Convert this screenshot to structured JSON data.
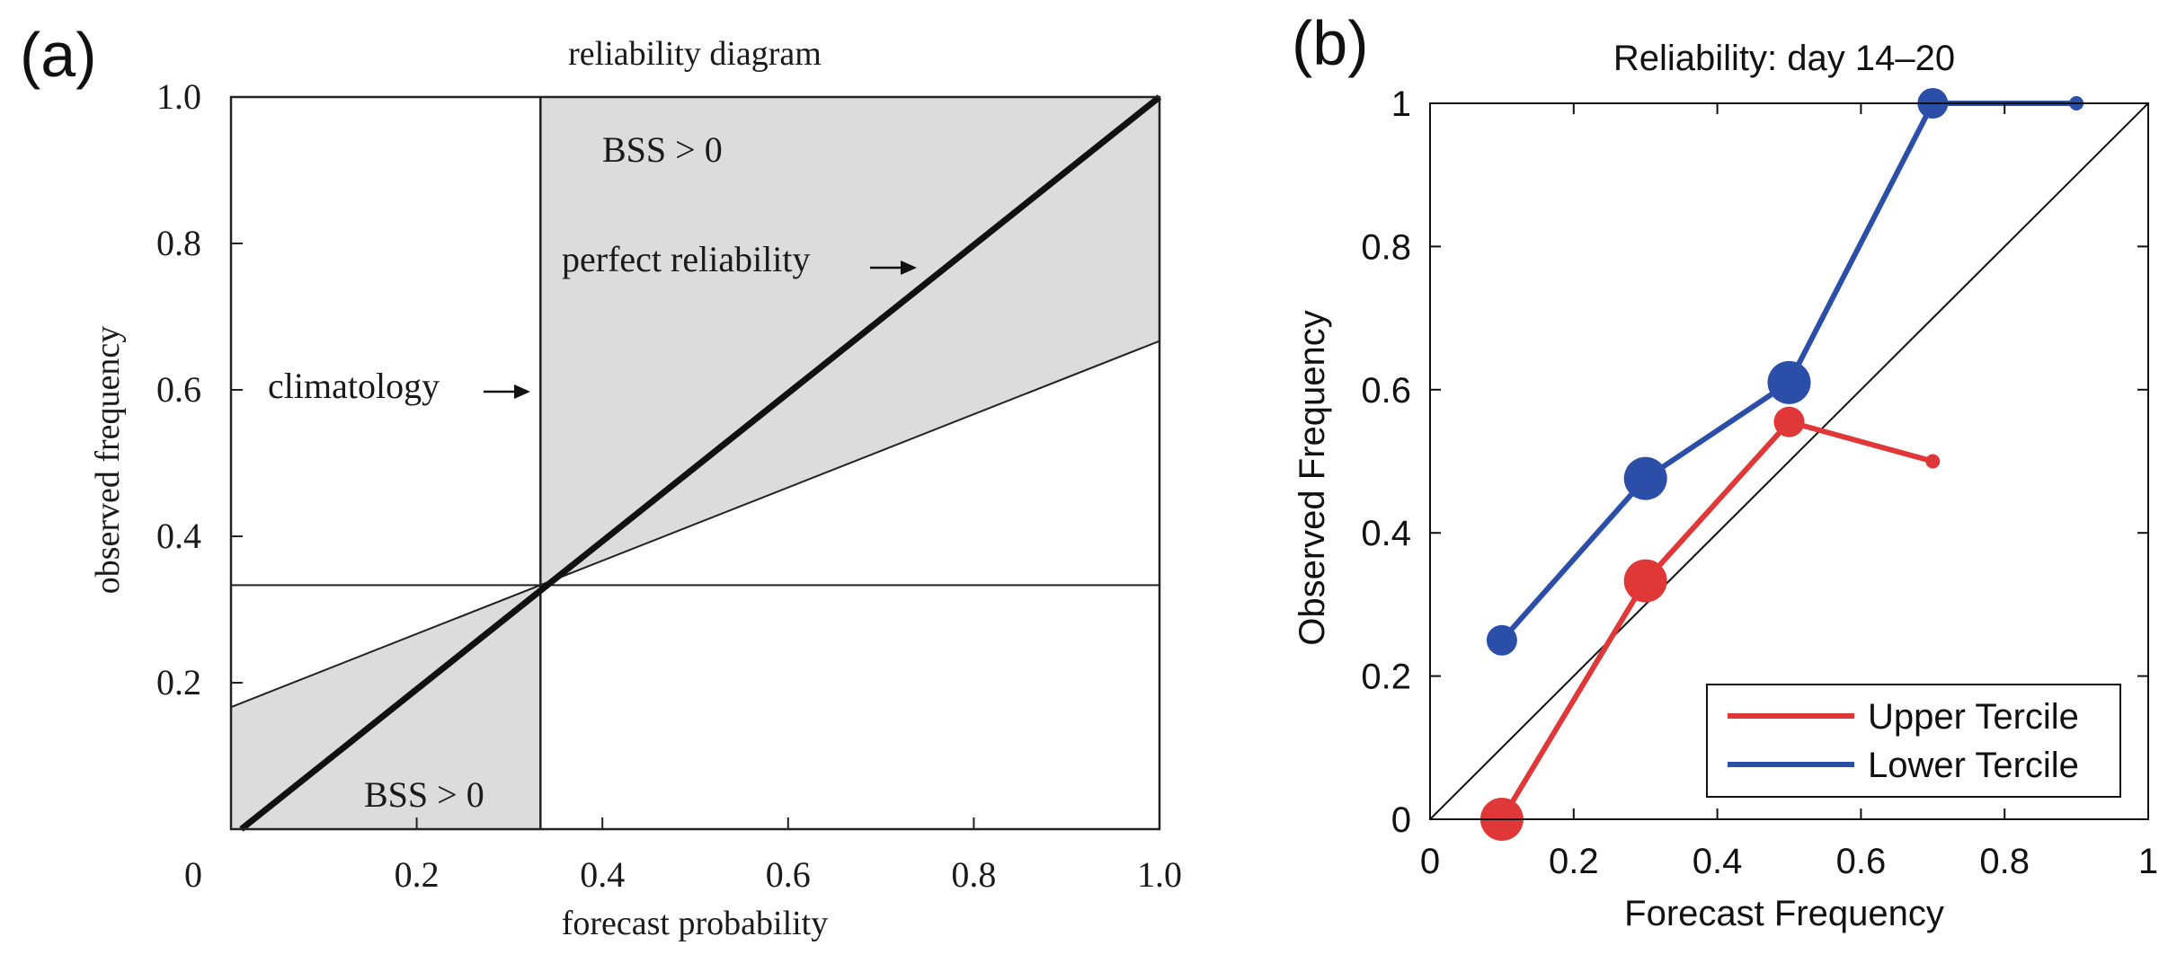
{
  "panels": {
    "a": {
      "letter": "(a)"
    },
    "b": {
      "letter": "(b)"
    }
  },
  "chart_data": [
    {
      "type": "line",
      "title": "reliability diagram",
      "xlabel": "forecast probability",
      "ylabel": "observed frequency",
      "xlim": [
        0,
        1.0
      ],
      "ylim": [
        0,
        1.0
      ],
      "xticks": [
        "0",
        "0.2",
        "0.4",
        "0.6",
        "0.8",
        "1.0"
      ],
      "yticks": [
        "0.2",
        "0.4",
        "0.6",
        "0.8",
        "1.0"
      ],
      "climatology": 0.3333,
      "lines": [
        {
          "x": [
            0.0111,
            1.0
          ],
          "y": [
            0.0,
            1.0
          ]
        },
        {
          "x": [
            0.0,
            1.0
          ],
          "y": [
            0.1667,
            0.6667
          ]
        }
      ],
      "shaded_regions": [
        "BSS > 0",
        "BSS > 0"
      ],
      "annotations": {
        "bss_top": "BSS > 0",
        "bss_bottom": "BSS > 0",
        "perfect": "perfect reliability",
        "climatology": "climatology"
      },
      "grid": false
    },
    {
      "type": "line",
      "title": "Reliability: day 14–20",
      "xlabel": "Forecast Frequency",
      "ylabel": "Observed Frequency",
      "xlim": [
        0,
        1
      ],
      "ylim": [
        0,
        1
      ],
      "xticks": [
        "0",
        "0.2",
        "0.4",
        "0.6",
        "0.8",
        "1"
      ],
      "yticks": [
        "0",
        "0.2",
        "0.4",
        "0.6",
        "0.8",
        "1"
      ],
      "diagonal": true,
      "legend_position": "bottom-right",
      "grid": false,
      "series": [
        {
          "name": "Upper Tercile",
          "color": "#e03838",
          "x": [
            0.1,
            0.3,
            0.5,
            0.7
          ],
          "y": [
            0.0,
            0.333,
            0.555,
            0.5
          ],
          "sizes": [
            3,
            3,
            2,
            1
          ]
        },
        {
          "name": "Lower Tercile",
          "color": "#2b4fa8",
          "x": [
            0.1,
            0.3,
            0.5,
            0.7,
            0.9
          ],
          "y": [
            0.25,
            0.476,
            0.61,
            1.0,
            1.0
          ],
          "sizes": [
            2,
            3,
            3,
            2,
            1
          ]
        }
      ]
    }
  ]
}
